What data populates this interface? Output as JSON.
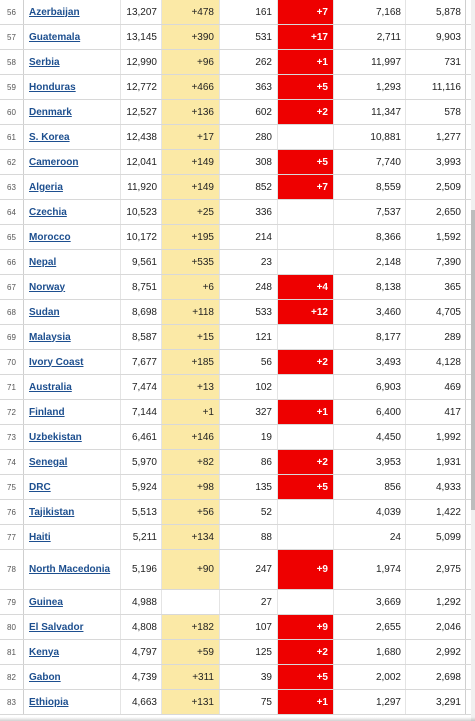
{
  "colors": {
    "new_cases_highlight": "#fbe9a6",
    "new_deaths_badge": "#ee0000",
    "link": "#1d4f8f"
  },
  "rows": [
    {
      "rank": "56",
      "country": "Azerbaijan",
      "cases": "13,207",
      "new_cases": "+478",
      "deaths": "161",
      "new_deaths": "+7",
      "recovered": "7,168",
      "active": "5,878"
    },
    {
      "rank": "57",
      "country": "Guatemala",
      "cases": "13,145",
      "new_cases": "+390",
      "deaths": "531",
      "new_deaths": "+17",
      "recovered": "2,711",
      "active": "9,903"
    },
    {
      "rank": "58",
      "country": "Serbia",
      "cases": "12,990",
      "new_cases": "+96",
      "deaths": "262",
      "new_deaths": "+1",
      "recovered": "11,997",
      "active": "731"
    },
    {
      "rank": "59",
      "country": "Honduras",
      "cases": "12,772",
      "new_cases": "+466",
      "deaths": "363",
      "new_deaths": "+5",
      "recovered": "1,293",
      "active": "11,116"
    },
    {
      "rank": "60",
      "country": "Denmark",
      "cases": "12,527",
      "new_cases": "+136",
      "deaths": "602",
      "new_deaths": "+2",
      "recovered": "11,347",
      "active": "578"
    },
    {
      "rank": "61",
      "country": "S. Korea",
      "cases": "12,438",
      "new_cases": "+17",
      "deaths": "280",
      "new_deaths": "",
      "recovered": "10,881",
      "active": "1,277"
    },
    {
      "rank": "62",
      "country": "Cameroon",
      "cases": "12,041",
      "new_cases": "+149",
      "deaths": "308",
      "new_deaths": "+5",
      "recovered": "7,740",
      "active": "3,993"
    },
    {
      "rank": "63",
      "country": "Algeria",
      "cases": "11,920",
      "new_cases": "+149",
      "deaths": "852",
      "new_deaths": "+7",
      "recovered": "8,559",
      "active": "2,509"
    },
    {
      "rank": "64",
      "country": "Czechia",
      "cases": "10,523",
      "new_cases": "+25",
      "deaths": "336",
      "new_deaths": "",
      "recovered": "7,537",
      "active": "2,650"
    },
    {
      "rank": "65",
      "country": "Morocco",
      "cases": "10,172",
      "new_cases": "+195",
      "deaths": "214",
      "new_deaths": "",
      "recovered": "8,366",
      "active": "1,592"
    },
    {
      "rank": "66",
      "country": "Nepal",
      "cases": "9,561",
      "new_cases": "+535",
      "deaths": "23",
      "new_deaths": "",
      "recovered": "2,148",
      "active": "7,390"
    },
    {
      "rank": "67",
      "country": "Norway",
      "cases": "8,751",
      "new_cases": "+6",
      "deaths": "248",
      "new_deaths": "+4",
      "recovered": "8,138",
      "active": "365"
    },
    {
      "rank": "68",
      "country": "Sudan",
      "cases": "8,698",
      "new_cases": "+118",
      "deaths": "533",
      "new_deaths": "+12",
      "recovered": "3,460",
      "active": "4,705"
    },
    {
      "rank": "69",
      "country": "Malaysia",
      "cases": "8,587",
      "new_cases": "+15",
      "deaths": "121",
      "new_deaths": "",
      "recovered": "8,177",
      "active": "289"
    },
    {
      "rank": "70",
      "country": "Ivory Coast",
      "cases": "7,677",
      "new_cases": "+185",
      "deaths": "56",
      "new_deaths": "+2",
      "recovered": "3,493",
      "active": "4,128"
    },
    {
      "rank": "71",
      "country": "Australia",
      "cases": "7,474",
      "new_cases": "+13",
      "deaths": "102",
      "new_deaths": "",
      "recovered": "6,903",
      "active": "469"
    },
    {
      "rank": "72",
      "country": "Finland",
      "cases": "7,144",
      "new_cases": "+1",
      "deaths": "327",
      "new_deaths": "+1",
      "recovered": "6,400",
      "active": "417"
    },
    {
      "rank": "73",
      "country": "Uzbekistan",
      "cases": "6,461",
      "new_cases": "+146",
      "deaths": "19",
      "new_deaths": "",
      "recovered": "4,450",
      "active": "1,992"
    },
    {
      "rank": "74",
      "country": "Senegal",
      "cases": "5,970",
      "new_cases": "+82",
      "deaths": "86",
      "new_deaths": "+2",
      "recovered": "3,953",
      "active": "1,931"
    },
    {
      "rank": "75",
      "country": "DRC",
      "cases": "5,924",
      "new_cases": "+98",
      "deaths": "135",
      "new_deaths": "+5",
      "recovered": "856",
      "active": "4,933"
    },
    {
      "rank": "76",
      "country": "Tajikistan",
      "cases": "5,513",
      "new_cases": "+56",
      "deaths": "52",
      "new_deaths": "",
      "recovered": "4,039",
      "active": "1,422"
    },
    {
      "rank": "77",
      "country": "Haiti",
      "cases": "5,211",
      "new_cases": "+134",
      "deaths": "88",
      "new_deaths": "",
      "recovered": "24",
      "active": "5,099"
    },
    {
      "rank": "78",
      "country": "North Macedonia",
      "cases": "5,196",
      "new_cases": "+90",
      "deaths": "247",
      "new_deaths": "+9",
      "recovered": "1,974",
      "active": "2,975",
      "tall": true
    },
    {
      "rank": "79",
      "country": "Guinea",
      "cases": "4,988",
      "new_cases": "",
      "deaths": "27",
      "new_deaths": "",
      "recovered": "3,669",
      "active": "1,292"
    },
    {
      "rank": "80",
      "country": "El Salvador",
      "cases": "4,808",
      "new_cases": "+182",
      "deaths": "107",
      "new_deaths": "+9",
      "recovered": "2,655",
      "active": "2,046"
    },
    {
      "rank": "81",
      "country": "Kenya",
      "cases": "4,797",
      "new_cases": "+59",
      "deaths": "125",
      "new_deaths": "+2",
      "recovered": "1,680",
      "active": "2,992"
    },
    {
      "rank": "82",
      "country": "Gabon",
      "cases": "4,739",
      "new_cases": "+311",
      "deaths": "39",
      "new_deaths": "+5",
      "recovered": "2,002",
      "active": "2,698"
    },
    {
      "rank": "83",
      "country": "Ethiopia",
      "cases": "4,663",
      "new_cases": "+131",
      "deaths": "75",
      "new_deaths": "+1",
      "recovered": "1,297",
      "active": "3,291"
    }
  ]
}
